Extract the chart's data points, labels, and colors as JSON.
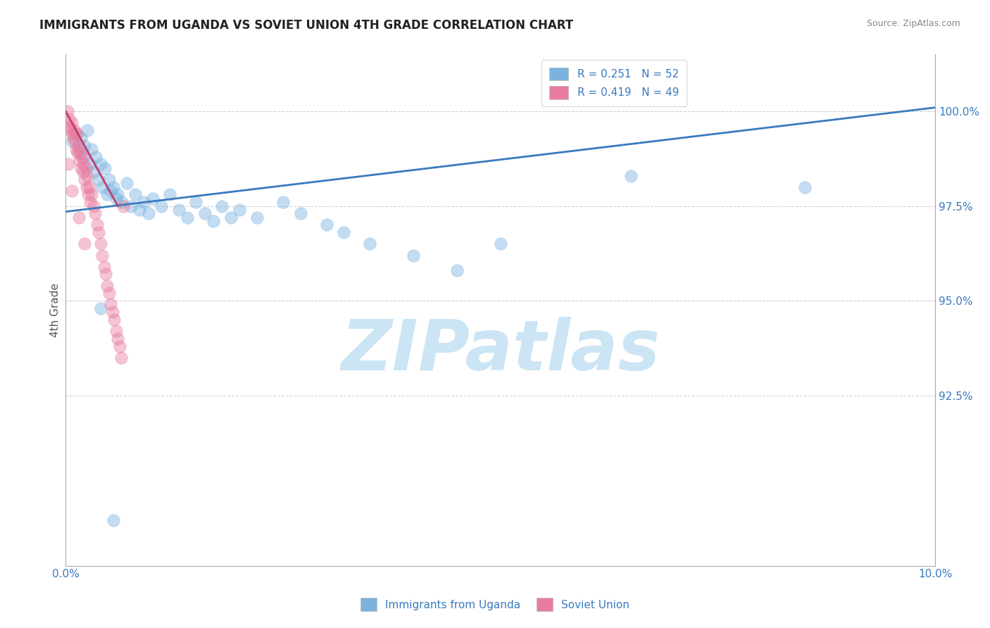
{
  "title": "IMMIGRANTS FROM UGANDA VS SOVIET UNION 4TH GRADE CORRELATION CHART",
  "source": "Source: ZipAtlas.com",
  "ylabel": "4th Grade",
  "watermark": "ZIPatlas",
  "xlim": [
    0.0,
    10.0
  ],
  "ylim": [
    88.0,
    101.5
  ],
  "yticks": [
    92.5,
    95.0,
    97.5,
    100.0
  ],
  "ytick_labels": [
    "92.5%",
    "95.0%",
    "97.5%",
    "100.0%"
  ],
  "xtick_labels": [
    "0.0%",
    "10.0%"
  ],
  "legend_entries": [
    {
      "label": "R = 0.251   N = 52",
      "color": "#a8c8f0"
    },
    {
      "label": "R = 0.419   N = 49",
      "color": "#f0a8c0"
    }
  ],
  "legend_bottom": [
    {
      "label": "Immigrants from Uganda",
      "color": "#a8c8f0"
    },
    {
      "label": "Soviet Union",
      "color": "#f0b8c8"
    }
  ],
  "uganda_scatter": [
    [
      0.08,
      99.2
    ],
    [
      0.12,
      99.4
    ],
    [
      0.15,
      99.0
    ],
    [
      0.18,
      99.3
    ],
    [
      0.2,
      98.8
    ],
    [
      0.22,
      99.1
    ],
    [
      0.25,
      99.5
    ],
    [
      0.28,
      98.6
    ],
    [
      0.3,
      99.0
    ],
    [
      0.32,
      98.4
    ],
    [
      0.35,
      98.8
    ],
    [
      0.38,
      98.2
    ],
    [
      0.4,
      98.6
    ],
    [
      0.42,
      98.0
    ],
    [
      0.45,
      98.5
    ],
    [
      0.48,
      97.8
    ],
    [
      0.5,
      98.2
    ],
    [
      0.52,
      97.9
    ],
    [
      0.55,
      98.0
    ],
    [
      0.58,
      97.7
    ],
    [
      0.6,
      97.8
    ],
    [
      0.65,
      97.6
    ],
    [
      0.7,
      98.1
    ],
    [
      0.75,
      97.5
    ],
    [
      0.8,
      97.8
    ],
    [
      0.85,
      97.4
    ],
    [
      0.9,
      97.6
    ],
    [
      0.95,
      97.3
    ],
    [
      1.0,
      97.7
    ],
    [
      1.1,
      97.5
    ],
    [
      1.2,
      97.8
    ],
    [
      1.3,
      97.4
    ],
    [
      1.4,
      97.2
    ],
    [
      1.5,
      97.6
    ],
    [
      1.6,
      97.3
    ],
    [
      1.7,
      97.1
    ],
    [
      1.8,
      97.5
    ],
    [
      1.9,
      97.2
    ],
    [
      2.0,
      97.4
    ],
    [
      2.2,
      97.2
    ],
    [
      2.5,
      97.6
    ],
    [
      2.7,
      97.3
    ],
    [
      3.0,
      97.0
    ],
    [
      3.2,
      96.8
    ],
    [
      3.5,
      96.5
    ],
    [
      4.0,
      96.2
    ],
    [
      4.5,
      95.8
    ],
    [
      5.0,
      96.5
    ],
    [
      6.5,
      98.3
    ],
    [
      8.5,
      98.0
    ],
    [
      0.4,
      94.8
    ],
    [
      0.55,
      89.2
    ]
  ],
  "soviet_scatter": [
    [
      0.02,
      100.0
    ],
    [
      0.04,
      99.8
    ],
    [
      0.05,
      99.6
    ],
    [
      0.06,
      99.5
    ],
    [
      0.07,
      99.7
    ],
    [
      0.08,
      99.4
    ],
    [
      0.09,
      99.3
    ],
    [
      0.1,
      99.5
    ],
    [
      0.11,
      99.2
    ],
    [
      0.12,
      99.0
    ],
    [
      0.13,
      99.4
    ],
    [
      0.14,
      98.9
    ],
    [
      0.15,
      99.1
    ],
    [
      0.16,
      98.7
    ],
    [
      0.17,
      98.9
    ],
    [
      0.18,
      98.5
    ],
    [
      0.19,
      98.8
    ],
    [
      0.2,
      98.4
    ],
    [
      0.21,
      98.6
    ],
    [
      0.22,
      98.2
    ],
    [
      0.23,
      98.5
    ],
    [
      0.24,
      98.0
    ],
    [
      0.25,
      98.3
    ],
    [
      0.26,
      97.8
    ],
    [
      0.27,
      98.0
    ],
    [
      0.28,
      97.6
    ],
    [
      0.3,
      97.8
    ],
    [
      0.32,
      97.5
    ],
    [
      0.34,
      97.3
    ],
    [
      0.36,
      97.0
    ],
    [
      0.38,
      96.8
    ],
    [
      0.4,
      96.5
    ],
    [
      0.42,
      96.2
    ],
    [
      0.44,
      95.9
    ],
    [
      0.46,
      95.7
    ],
    [
      0.48,
      95.4
    ],
    [
      0.5,
      95.2
    ],
    [
      0.52,
      94.9
    ],
    [
      0.54,
      94.7
    ],
    [
      0.56,
      94.5
    ],
    [
      0.58,
      94.2
    ],
    [
      0.6,
      94.0
    ],
    [
      0.62,
      93.8
    ],
    [
      0.64,
      93.5
    ],
    [
      0.66,
      97.5
    ],
    [
      0.03,
      98.6
    ],
    [
      0.07,
      97.9
    ],
    [
      0.15,
      97.2
    ],
    [
      0.22,
      96.5
    ]
  ],
  "uganda_line": {
    "x0": 0.0,
    "y0": 97.35,
    "x1": 10.0,
    "y1": 100.1
  },
  "soviet_line": {
    "x0": 0.0,
    "y0": 100.0,
    "x1": 0.6,
    "y1": 97.5
  },
  "scatter_size": 160,
  "scatter_alpha": 0.45,
  "uganda_color": "#7ab3e0",
  "soviet_color": "#e87ca0",
  "uganda_line_color": "#3a7abf",
  "soviet_line_color": "#c04070",
  "grid_color": "#cccccc",
  "background_color": "#ffffff",
  "title_color": "#222222",
  "axis_label_color": "#555555",
  "tick_label_color": "#3a7abf",
  "legend_text_color": "#3a7abf",
  "watermark_color": "#cce5f5",
  "watermark_fontsize": 72
}
